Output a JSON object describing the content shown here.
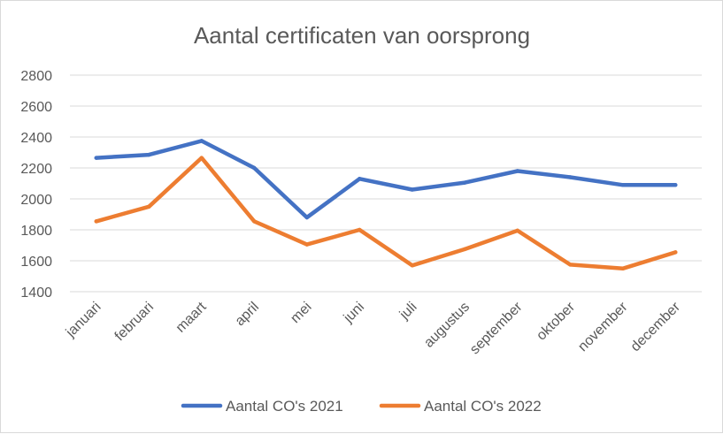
{
  "chart_data": {
    "type": "line",
    "title": "Aantal certificaten van oorsprong",
    "xlabel": "",
    "ylabel": "",
    "categories": [
      "januari",
      "februari",
      "maart",
      "april",
      "mei",
      "juni",
      "juli",
      "augustus",
      "september",
      "oktober",
      "november",
      "december"
    ],
    "ylim": [
      1400,
      2800
    ],
    "yticks": [
      1400,
      1600,
      1800,
      2000,
      2200,
      2400,
      2600,
      2800
    ],
    "grid": true,
    "legend_position": "bottom",
    "series": [
      {
        "name": "Aantal CO's 2021",
        "color": "#4472c4",
        "values": [
          2265,
          2285,
          2375,
          2200,
          1880,
          2130,
          2060,
          2105,
          2180,
          2140,
          2090,
          2090
        ]
      },
      {
        "name": "Aantal CO's 2022",
        "color": "#ed7d31",
        "values": [
          1855,
          1950,
          2265,
          1855,
          1705,
          1800,
          1570,
          1675,
          1795,
          1575,
          1550,
          1655
        ]
      }
    ]
  }
}
